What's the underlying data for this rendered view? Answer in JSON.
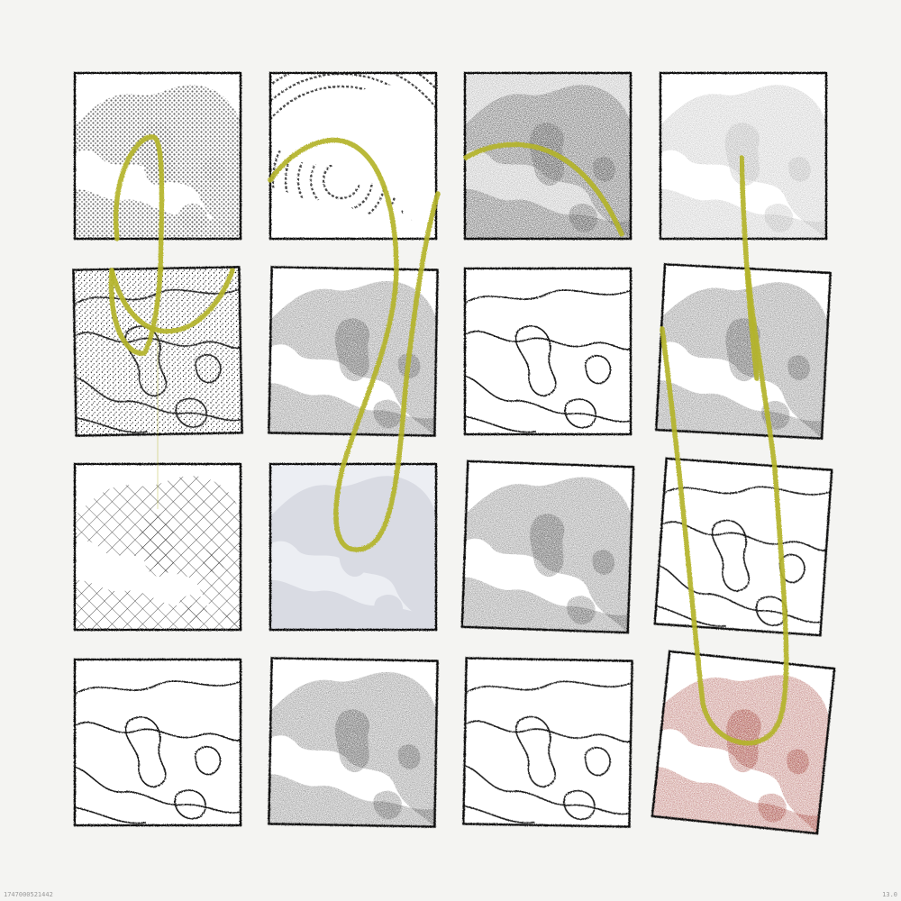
{
  "footer": {
    "seed": "1747000521442",
    "version": "13.0"
  },
  "colors": {
    "background": "#f4f4f2",
    "ink": "#1a1a1a",
    "dark_fill": "#3a3a3a",
    "gray_fill": "#8a8a8a",
    "pale_fill": "#d9dbe3",
    "red_fill": "#8e1a12",
    "stroke": "#b4b42a"
  },
  "panels": [
    {
      "row": 0,
      "col": 0,
      "style": "halftone-gray"
    },
    {
      "row": 0,
      "col": 1,
      "style": "ring-hatch"
    },
    {
      "row": 0,
      "col": 2,
      "style": "dark-on-gray"
    },
    {
      "row": 0,
      "col": 3,
      "style": "light-gray"
    },
    {
      "row": 1,
      "col": 0,
      "style": "stipple-contour"
    },
    {
      "row": 1,
      "col": 1,
      "style": "dark-solid"
    },
    {
      "row": 1,
      "col": 2,
      "style": "contour"
    },
    {
      "row": 1,
      "col": 3,
      "style": "dark-solid"
    },
    {
      "row": 2,
      "col": 0,
      "style": "crosshatch"
    },
    {
      "row": 2,
      "col": 1,
      "style": "pale-blue"
    },
    {
      "row": 2,
      "col": 2,
      "style": "dark-solid"
    },
    {
      "row": 2,
      "col": 3,
      "style": "contour"
    },
    {
      "row": 3,
      "col": 0,
      "style": "contour"
    },
    {
      "row": 3,
      "col": 1,
      "style": "dark-solid"
    },
    {
      "row": 3,
      "col": 2,
      "style": "contour"
    },
    {
      "row": 3,
      "col": 3,
      "style": "red-solid"
    }
  ]
}
